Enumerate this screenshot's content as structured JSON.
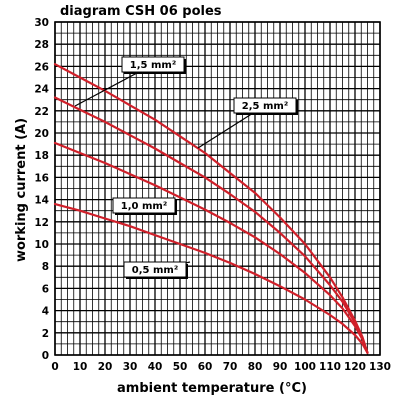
{
  "chart_data": {
    "type": "line",
    "title": "diagram CSH 06 poles",
    "xlabel": "ambient temperature (°C)",
    "ylabel": "working current (A)",
    "xlim": [
      0,
      130
    ],
    "ylim": [
      0,
      30
    ],
    "x_ticks": [
      0,
      10,
      20,
      30,
      40,
      50,
      60,
      70,
      80,
      90,
      100,
      110,
      120,
      130
    ],
    "y_ticks": [
      0,
      2,
      4,
      6,
      8,
      10,
      12,
      14,
      16,
      18,
      20,
      22,
      24,
      26,
      28,
      30
    ],
    "grid": true,
    "line_color": "#d0202a",
    "series": [
      {
        "name": "1,5 mm²",
        "x": [
          0,
          10,
          20,
          30,
          40,
          50,
          60,
          70,
          80,
          90,
          100,
          110,
          115,
          120,
          123,
          125
        ],
        "y": [
          26.2,
          25.0,
          23.8,
          22.5,
          21.2,
          19.7,
          18.2,
          16.4,
          14.6,
          12.4,
          10.0,
          7.0,
          5.2,
          3.1,
          1.6,
          0.2
        ]
      },
      {
        "name": "2,5 mm²",
        "x": [
          0,
          10,
          20,
          30,
          40,
          50,
          60,
          70,
          80,
          90,
          100,
          110,
          115,
          120,
          123,
          125
        ],
        "y": [
          23.2,
          22.1,
          21.0,
          19.8,
          18.6,
          17.3,
          16.0,
          14.5,
          12.9,
          11.0,
          8.9,
          6.3,
          4.8,
          2.9,
          1.5,
          0.2
        ]
      },
      {
        "name": "1,0 mm²",
        "x": [
          0,
          10,
          20,
          30,
          40,
          50,
          60,
          70,
          80,
          90,
          100,
          110,
          115,
          120,
          123,
          125
        ],
        "y": [
          19.1,
          18.2,
          17.3,
          16.3,
          15.3,
          14.2,
          13.1,
          11.9,
          10.6,
          9.1,
          7.4,
          5.4,
          4.2,
          2.6,
          1.4,
          0.2
        ]
      },
      {
        "name": "0,5 mm²",
        "x": [
          0,
          10,
          20,
          30,
          40,
          50,
          60,
          70,
          80,
          90,
          100,
          110,
          115,
          120,
          123,
          125
        ],
        "y": [
          13.6,
          13.0,
          12.3,
          11.6,
          10.8,
          10.0,
          9.2,
          8.3,
          7.3,
          6.2,
          5.0,
          3.6,
          2.8,
          1.8,
          1.0,
          0.2
        ]
      }
    ],
    "annotations": [
      {
        "series": "1,5 mm²",
        "text": "1,5 mm²"
      },
      {
        "series": "2,5 mm²",
        "text": "2,5 mm²"
      },
      {
        "series": "1,0 mm²",
        "text": "1,0 mm²"
      },
      {
        "series": "0,5 mm²",
        "text": "0,5 mm²"
      }
    ]
  }
}
